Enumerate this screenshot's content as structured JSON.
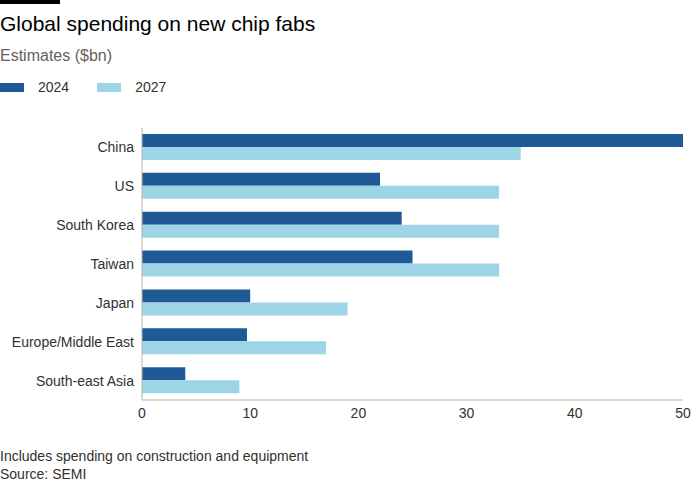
{
  "chart_data": {
    "type": "bar",
    "orientation": "horizontal",
    "title": "Global spending on new chip fabs",
    "subtitle": "Estimates ($bn)",
    "categories": [
      "China",
      "US",
      "South Korea",
      "Taiwan",
      "Japan",
      "Europe/Middle East",
      "South-east Asia"
    ],
    "series": [
      {
        "name": "2024",
        "color": "#1f5a96",
        "values": [
          50,
          22,
          24,
          25,
          10,
          9.7,
          4
        ]
      },
      {
        "name": "2027",
        "color": "#9dd4e6",
        "values": [
          35,
          33,
          33,
          33,
          19,
          17,
          9
        ]
      }
    ],
    "xlim": [
      0,
      50
    ],
    "xticks": [
      0,
      10,
      20,
      30,
      40,
      50
    ],
    "grid": false,
    "legend": "top-left",
    "annotations": [
      "Includes spending on construction and equipment",
      "Source: SEMI"
    ]
  }
}
